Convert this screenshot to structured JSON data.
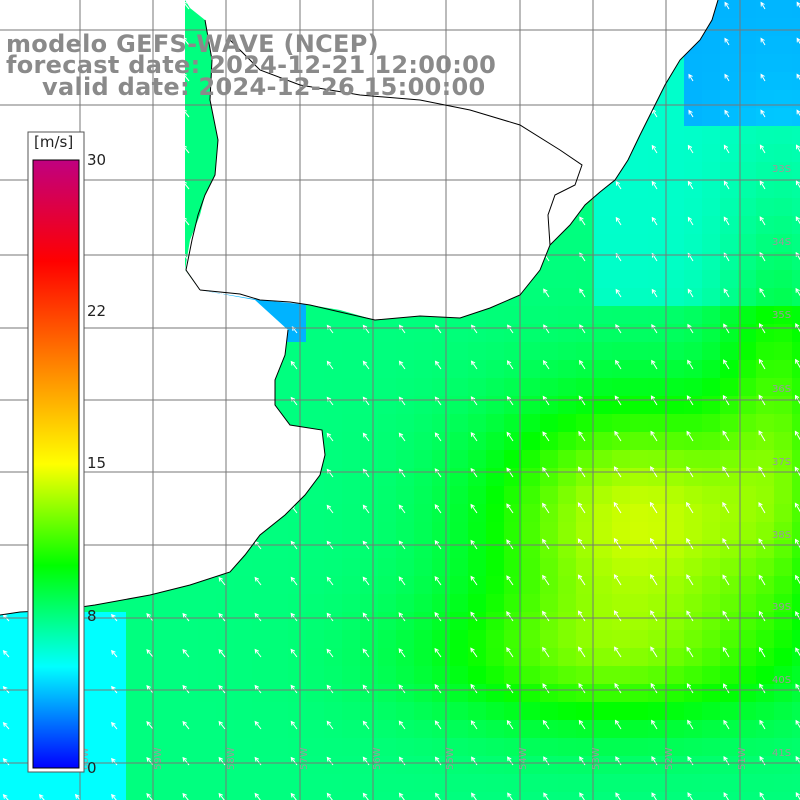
{
  "title": {
    "line1": "modelo GEFS-WAVE (NCEP)",
    "line2": "forecast date: 2024-12-21 12:00:00",
    "line3": "valid date: 2024-12-26 15:00:00"
  },
  "colorbar": {
    "unit": "[m/s]",
    "ticks": [
      "30",
      "22",
      "15",
      "8",
      "0"
    ],
    "tick_values": [
      30,
      22,
      15,
      8,
      0
    ],
    "colors": [
      "#0000ff",
      "#00ffff",
      "#00ff00",
      "#ffff00",
      "#ff8000",
      "#ff0000",
      "#c00080"
    ]
  },
  "map": {
    "lat_labels": [
      "33S",
      "34S",
      "35S",
      "36S",
      "37S",
      "38S",
      "39S",
      "40S",
      "41S"
    ],
    "lon_labels": [
      "60W",
      "59W",
      "58W",
      "57W",
      "56W",
      "55W",
      "54W",
      "53W",
      "52W",
      "51W",
      "50W"
    ],
    "wind_direction": "from southeast (arrows point northwest)"
  }
}
